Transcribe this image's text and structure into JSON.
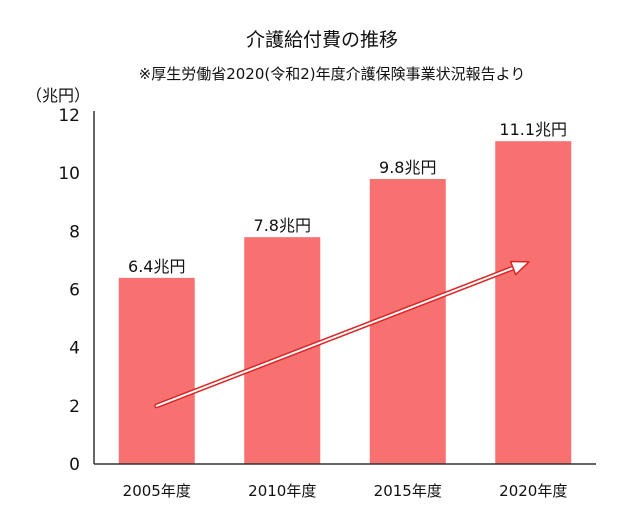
{
  "chart_data": {
    "type": "bar",
    "title": "介護給付費の推移",
    "subtitle": "※厚生労働省2020(令和2)年度介護保険事業状況報告より",
    "ylabel": "（兆円）",
    "xlabel": "",
    "categories": [
      "2005年度",
      "2010年度",
      "2015年度",
      "2020年度"
    ],
    "values": [
      6.4,
      7.8,
      9.8,
      11.1
    ],
    "data_labels": [
      "6.4兆円",
      "7.8兆円",
      "9.8兆円",
      "11.1兆円"
    ],
    "ylim": [
      0,
      12
    ],
    "yticks": [
      "0",
      "2",
      "4",
      "6",
      "8",
      "10",
      "12"
    ],
    "grid": false,
    "legend": "none",
    "bar_color": "#f87171",
    "trend_arrow_color": "#dc2626",
    "annotation": "upward trend arrow"
  }
}
